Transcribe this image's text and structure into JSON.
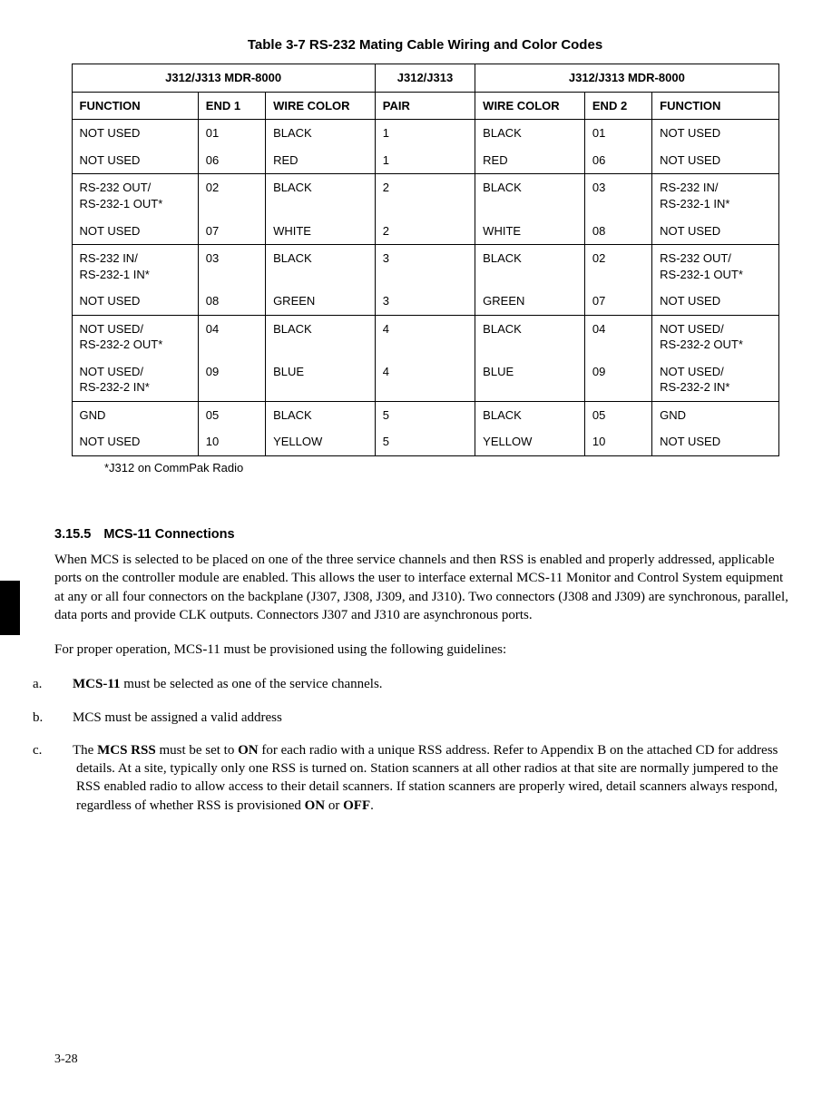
{
  "table": {
    "caption": "Table 3-7  RS-232 Mating Cable Wiring and Color Codes",
    "topHeaders": {
      "left": "J312/J313 MDR-8000",
      "mid": "J312/J313",
      "right": "J312/J313 MDR-8000"
    },
    "columns": [
      "FUNCTION",
      "END 1",
      "WIRE COLOR",
      "PAIR",
      "WIRE COLOR",
      "END 2",
      "FUNCTION"
    ],
    "groups": [
      [
        [
          "NOT USED",
          "01",
          "BLACK",
          "1",
          "BLACK",
          "01",
          "NOT USED"
        ],
        [
          "NOT USED",
          "06",
          "RED",
          "1",
          "RED",
          "06",
          "NOT USED"
        ]
      ],
      [
        [
          "RS-232 OUT/\nRS-232-1 OUT*",
          "02",
          "BLACK",
          "2",
          "BLACK",
          "03",
          "RS-232 IN/\nRS-232-1 IN*"
        ],
        [
          "NOT USED",
          "07",
          "WHITE",
          "2",
          "WHITE",
          "08",
          "NOT USED"
        ]
      ],
      [
        [
          "RS-232 IN/\nRS-232-1 IN*",
          "03",
          "BLACK",
          "3",
          "BLACK",
          "02",
          "RS-232 OUT/\nRS-232-1 OUT*"
        ],
        [
          "NOT USED",
          "08",
          "GREEN",
          "3",
          "GREEN",
          "07",
          "NOT USED"
        ]
      ],
      [
        [
          "NOT USED/\nRS-232-2 OUT*",
          "04",
          "BLACK",
          "4",
          "BLACK",
          "04",
          "NOT USED/\nRS-232-2 OUT*"
        ],
        [
          "NOT USED/\nRS-232-2 IN*",
          "09",
          "BLUE",
          "4",
          "BLUE",
          "09",
          "NOT USED/\nRS-232-2 IN*"
        ]
      ],
      [
        [
          "GND",
          "05",
          "BLACK",
          "5",
          "BLACK",
          "05",
          "GND"
        ],
        [
          "NOT USED",
          "10",
          "YELLOW",
          "5",
          "YELLOW",
          "10",
          "NOT USED"
        ]
      ]
    ],
    "footnote": "*J312 on CommPak Radio"
  },
  "section": {
    "number": "3.15.5",
    "title": "MCS-11 Connections",
    "para1": "When MCS is selected to be placed on one of the three service channels and then RSS is enabled and properly addressed, applicable ports on the controller module are enabled. This allows the user to interface external MCS-11 Monitor and Control System equipment at any or all four connectors on the backplane (J307, J308, J309, and J310). Two connectors (J308 and J309) are synchronous, parallel, data ports and provide CLK outputs. Connectors J307 and J310 are asynchronous ports.",
    "para2": "For proper operation, MCS-11 must be provisioned using the following guidelines:",
    "items": {
      "a": {
        "pre": "",
        "bold": "MCS-11",
        "post": " must be selected as one of the service channels."
      },
      "b": {
        "text": "MCS must be assigned a valid address"
      },
      "c": {
        "pre": "The ",
        "b1": "MCS RSS",
        "mid": " must be set to ",
        "b2": "ON",
        "post1": " for each radio with a unique RSS address. Refer to Appendix B on the attached CD for address details. At a site, typically only one RSS is turned on. Station scanners at all other radios at that site are normally jumpered to the RSS enabled radio to allow access to their detail scanners. If station scanners are properly wired, detail scanners always respond, regardless of whether RSS is provisioned ",
        "b3": "ON",
        "or": " or ",
        "b4": "OFF",
        "period": "."
      }
    }
  },
  "pageNumber": "3-28"
}
